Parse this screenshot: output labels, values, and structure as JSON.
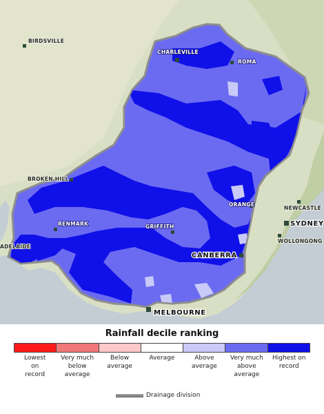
{
  "legend": {
    "title": "Rainfall decile ranking",
    "categories": [
      {
        "label": "Lowest\non\nrecord",
        "color": "#ff1a1a"
      },
      {
        "label": "Very much\nbelow\naverage",
        "color": "#f07878"
      },
      {
        "label": "Below\naverage",
        "color": "#fcc8c8"
      },
      {
        "label": "Average",
        "color": "#ffffff"
      },
      {
        "label": "Above\naverage",
        "color": "#c9caf7"
      },
      {
        "label": "Very much\nabove\naverage",
        "color": "#6b6bf2"
      },
      {
        "label": "Highest on\nrecord",
        "color": "#1010e8"
      }
    ],
    "drainage_label": "Drainage division"
  },
  "map": {
    "land_color": "#d9dfc4",
    "sea_color": "#c4cdd4",
    "cities": [
      {
        "name": "BIRDSVILLE",
        "style": "plain"
      },
      {
        "name": "CHARLEVILLE",
        "style": "inbasin"
      },
      {
        "name": "ROMA",
        "style": "inbasin"
      },
      {
        "name": "BROKEN HILL",
        "style": "plain"
      },
      {
        "name": "RENMARK",
        "style": "inbasin"
      },
      {
        "name": "GRIFFITH",
        "style": "inbasin"
      },
      {
        "name": "ORANGE",
        "style": "inbasin"
      },
      {
        "name": "CANBERRA",
        "style": "major"
      },
      {
        "name": "MELBOURNE",
        "style": "major"
      },
      {
        "name": "SYDNEY",
        "style": "major"
      },
      {
        "name": "NEWCASTLE",
        "style": "plain"
      },
      {
        "name": "WOLLONGONG",
        "style": "plain"
      },
      {
        "name": "ADELAIDE",
        "style": "plain"
      }
    ]
  }
}
